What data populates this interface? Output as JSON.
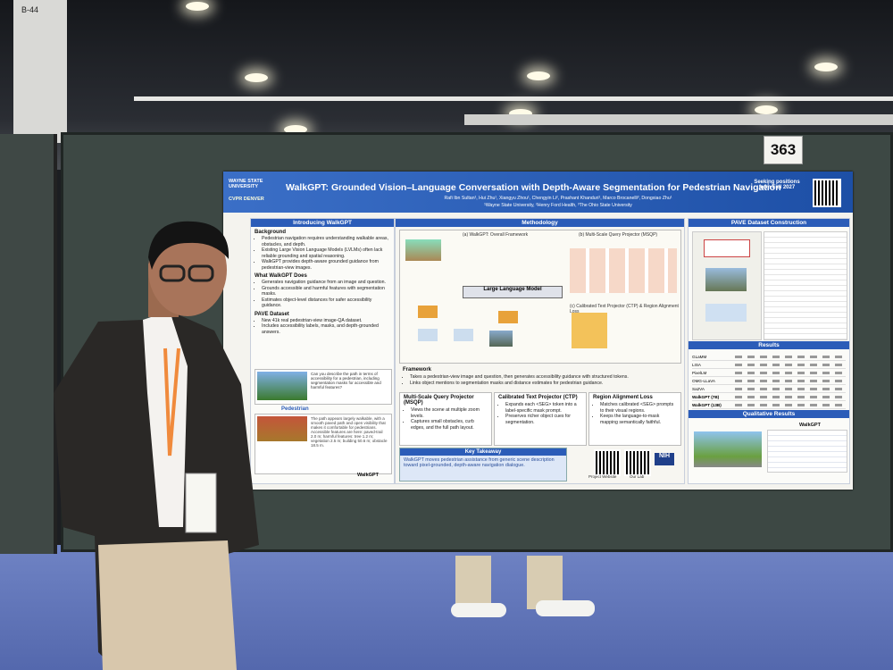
{
  "booth": {
    "aisle": "B-44",
    "number": "363"
  },
  "poster": {
    "title": "WalkGPT: Grounded Vision–Language Conversation with Depth-Aware Segmentation for Pedestrian Navigation",
    "authors": "Rafi Ibn Sultan¹, Hui Zhu¹, Xiangyu Zhou¹, Chengyin Li², Prashant Khanduri¹, Marco Brocanelli³, Dongxiao Zhu¹",
    "affiliations": "¹Wayne State University, ²Henry Ford Health, ³The Ohio State University",
    "logos": [
      "WAYNE STATE UNIVERSITY",
      "CVPR DENVER"
    ],
    "seeking": "Seeking positions from Fall 2027",
    "intro": {
      "heading": "Introducing WalkGPT",
      "groups": [
        {
          "title": "Background",
          "items": [
            "Pedestrian navigation requires understanding walkable areas, obstacles, and depth.",
            "Existing Large Vision Language Models (LVLMs) often lack reliable grounding and spatial reasoning.",
            "WalkGPT provides depth-aware grounded guidance from pedestrian-view images."
          ]
        },
        {
          "title": "What WalkGPT Does",
          "items": [
            "Generates navigation guidance from an image and question.",
            "Grounds accessible and harmful features with segmentation masks.",
            "Estimates object-level distances for safer accessibility guidance."
          ]
        },
        {
          "title": "PAVE Dataset",
          "items": [
            "New 41k real pedestrian-view image-QA dataset.",
            "Includes accessibility labels, masks, and depth-grounded answers."
          ]
        }
      ],
      "question": "Can you describe the path in terms of accessibility for a pedestrian, including segmentation masks for accessible and harmful features?",
      "example_label": "Pedestrian",
      "answer": "The path appears largely walkable, with a smooth paved path and open visibility that makes it comfortable for pedestrians. Accessible features are here: paved-trail 2.0 m; harmful features: tree 1.2 m; vegetation 2.5 m; building 50.6 m; obstacle 18.5 m.",
      "brand": "WalkGPT"
    },
    "method": {
      "heading": "Methodology",
      "diagram": [
        "(a) WalkGPT: Overall Framework",
        "(b) Multi-Scale Query Projector (MSQP)",
        "(c) Calibrated Text Projector (CTP) & Region Alignment Loss",
        "Large Language Model"
      ],
      "framework": {
        "title": "Framework",
        "items": [
          "Takes a pedestrian-view image and question, then generates accessibility guidance with structured tokens.",
          "Links object mentions to segmentation masks and distance estimates for pedestrian guidance."
        ]
      },
      "subsections": [
        {
          "title": "Multi-Scale Query Projector (MSQP)",
          "items": [
            "Views the scene at multiple zoom levels.",
            "Captures small obstacles, curb edges, and the full path layout."
          ]
        },
        {
          "title": "Calibrated Text Projector (CTP)",
          "items": [
            "Expands each <SEG> token into a label-specific mask prompt.",
            "Preserves richer object cues for segmentation."
          ]
        },
        {
          "title": "Region Alignment Loss",
          "items": [
            "Matches calibrated <SEG> prompts to their visual regions.",
            "Keeps the language-to-mask mapping semantically faithful."
          ]
        }
      ],
      "takeaway": {
        "title": "Key Takeaway",
        "text": "WalkGPT moves pedestrian assistance from generic scene description toward pixel-grounded, depth-aware navigation dialogue."
      },
      "links": [
        "Project Website",
        "Our Lab",
        "NIH"
      ]
    },
    "right": {
      "dataset_heading": "PAVE Dataset Construction",
      "results_heading": "Results",
      "qual_heading": "Qualitative Results",
      "models": [
        "GLaMM",
        "LISA",
        "PixelLM",
        "OMG-LLaVA",
        "Sa2VA",
        "WalkGPT (7B)",
        "WalkGPT (13B)"
      ]
    }
  }
}
